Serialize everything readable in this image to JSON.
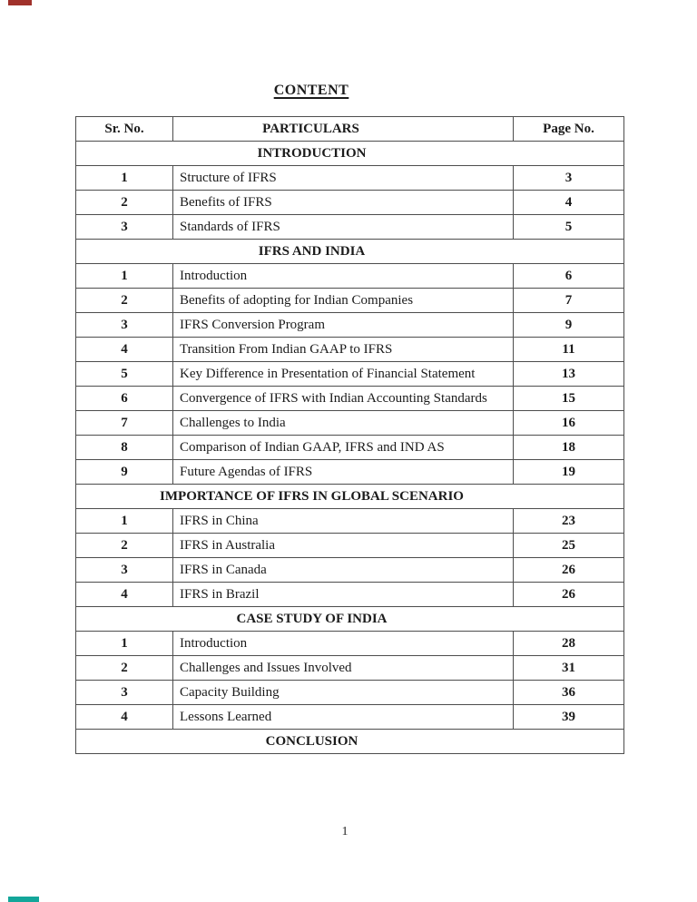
{
  "page": {
    "title": "CONTENT",
    "footer_page_number": "1"
  },
  "table": {
    "headers": [
      "Sr. No.",
      "PARTICULARS",
      "Page No."
    ],
    "sections": [
      {
        "title": "INTRODUCTION",
        "rows": [
          [
            "1",
            "Structure of IFRS",
            "3"
          ],
          [
            "2",
            "Benefits of IFRS",
            "4"
          ],
          [
            "3",
            "Standards of IFRS",
            "5"
          ]
        ]
      },
      {
        "title": "IFRS AND INDIA",
        "rows": [
          [
            "1",
            "Introduction",
            "6"
          ],
          [
            "2",
            "Benefits of adopting for Indian Companies",
            "7"
          ],
          [
            "3",
            "IFRS Conversion Program",
            "9"
          ],
          [
            "4",
            "Transition From Indian GAAP to IFRS",
            "11"
          ],
          [
            "5",
            "Key Difference in Presentation of Financial Statement",
            "13"
          ],
          [
            "6",
            "Convergence of IFRS with Indian Accounting Standards",
            "15"
          ],
          [
            "7",
            "Challenges to India",
            "16"
          ],
          [
            "8",
            "Comparison of Indian GAAP, IFRS and IND AS",
            "18"
          ],
          [
            "9",
            "Future Agendas of IFRS",
            "19"
          ]
        ]
      },
      {
        "title": "IMPORTANCE OF IFRS IN GLOBAL SCENARIO",
        "rows": [
          [
            "1",
            "IFRS in China",
            "23"
          ],
          [
            "2",
            "IFRS in Australia",
            "25"
          ],
          [
            "3",
            "IFRS in Canada",
            "26"
          ],
          [
            "4",
            "IFRS in Brazil",
            "26"
          ]
        ]
      },
      {
        "title": "CASE STUDY OF INDIA",
        "rows": [
          [
            "1",
            "Introduction",
            "28"
          ],
          [
            "2",
            "Challenges and Issues Involved",
            "31"
          ],
          [
            "3",
            "Capacity Building",
            "36"
          ],
          [
            "4",
            "Lessons Learned",
            "39"
          ]
        ]
      },
      {
        "title": "CONCLUSION",
        "rows": []
      }
    ]
  },
  "colors": {
    "text": "#1b1b1b",
    "table_border": "#4d4d4d",
    "corner_mark_top": "#a0312b",
    "corner_mark_bottom": "#13a69a"
  }
}
